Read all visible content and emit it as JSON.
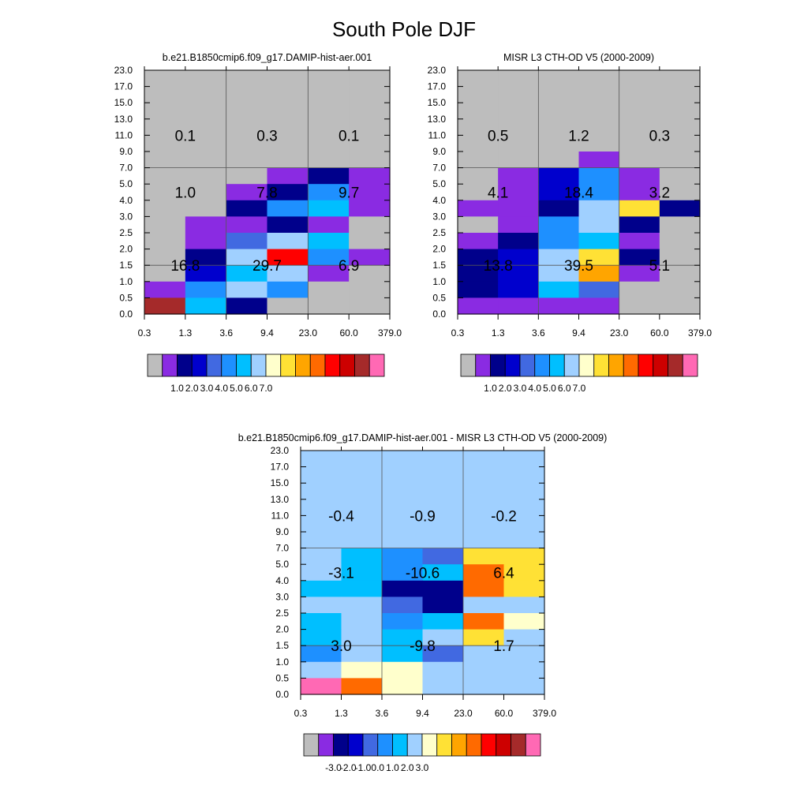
{
  "figure_title": "South Pole DJF",
  "chart_data": [
    {
      "type": "heatmap",
      "title": "b.e21.B1850cmip6.f09_g17.DAMIP-hist-aer.001",
      "x_tick_labels": [
        "0.3",
        "1.3",
        "3.6",
        "9.4",
        "23.0",
        "60.0",
        "379.0"
      ],
      "y_tick_labels": [
        "0.0",
        "0.5",
        "1.0",
        "1.5",
        "2.0",
        "2.5",
        "3.0",
        "4.0",
        "5.0",
        "7.0",
        "9.0",
        "11.0",
        "13.0",
        "15.0",
        "17.0",
        "23.0"
      ],
      "rows_top_to_bottom": [
        [
          0,
          0,
          0,
          0,
          0,
          0
        ],
        [
          0,
          0,
          0,
          0,
          0,
          0
        ],
        [
          0,
          0,
          0,
          0,
          0,
          0
        ],
        [
          0,
          0,
          0,
          0,
          0,
          0
        ],
        [
          0,
          0,
          0,
          0,
          0,
          0
        ],
        [
          0,
          0,
          0,
          0,
          0,
          0
        ],
        [
          0,
          0,
          0,
          1,
          2,
          1
        ],
        [
          0,
          0,
          1,
          2,
          5,
          1
        ],
        [
          0,
          0,
          2,
          5,
          6,
          1
        ],
        [
          0,
          1,
          1,
          2,
          1,
          0
        ],
        [
          0,
          1,
          4,
          7,
          6,
          0
        ],
        [
          0,
          2,
          7,
          12,
          5,
          1
        ],
        [
          0,
          3,
          6,
          7,
          1,
          0
        ],
        [
          1,
          5,
          7,
          5,
          0,
          0
        ],
        [
          14,
          6,
          2,
          0,
          0,
          0
        ]
      ],
      "region_labels": [
        {
          "text": "0.1",
          "xi": 0,
          "yi": 11
        },
        {
          "text": "0.3",
          "xi": 1,
          "yi": 11
        },
        {
          "text": "0.1",
          "xi": 2,
          "yi": 11
        },
        {
          "text": "1.0",
          "xi": 0,
          "yi": 7.5
        },
        {
          "text": "7.8",
          "xi": 1,
          "yi": 7.5
        },
        {
          "text": "9.7",
          "xi": 2,
          "yi": 7.5
        },
        {
          "text": "16.8",
          "xi": 0,
          "yi": 3
        },
        {
          "text": "29.7",
          "xi": 1,
          "yi": 3
        },
        {
          "text": "6.9",
          "xi": 2,
          "yi": 3
        }
      ],
      "colorbar": {
        "colors": [
          "#bdbdbd",
          "#8a2be2",
          "#00008b",
          "#0000cd",
          "#4169e1",
          "#1e90ff",
          "#00bfff",
          "#a0d0ff",
          "#ffffcc",
          "#ffe135",
          "#ffa500",
          "#ff6a00",
          "#ff0000",
          "#cd0000",
          "#a52a2a",
          "#ff69b4"
        ],
        "labels": [
          "1.0",
          "2.0",
          "3.0",
          "4.0",
          "5.0",
          "6.0",
          "7.0"
        ]
      }
    },
    {
      "type": "heatmap",
      "title": "MISR L3 CTH-OD V5 (2000-2009)",
      "x_tick_labels": [
        "0.3",
        "1.3",
        "3.6",
        "9.4",
        "23.0",
        "60.0",
        "379.0"
      ],
      "y_tick_labels": [
        "0.0",
        "0.5",
        "1.0",
        "1.5",
        "2.0",
        "2.5",
        "3.0",
        "4.0",
        "5.0",
        "7.0",
        "9.0",
        "11.0",
        "13.0",
        "15.0",
        "17.0",
        "23.0"
      ],
      "rows_top_to_bottom": [
        [
          0,
          0,
          0,
          0,
          0,
          0
        ],
        [
          0,
          0,
          0,
          0,
          0,
          0
        ],
        [
          0,
          0,
          0,
          0,
          0,
          0
        ],
        [
          0,
          0,
          0,
          0,
          0,
          0
        ],
        [
          0,
          0,
          0,
          0,
          0,
          0
        ],
        [
          0,
          0,
          0,
          1,
          0,
          0
        ],
        [
          0,
          1,
          3,
          5,
          1,
          0
        ],
        [
          0,
          1,
          3,
          5,
          1,
          0
        ],
        [
          1,
          1,
          2,
          7,
          9,
          2
        ],
        [
          0,
          1,
          5,
          7,
          2,
          0
        ],
        [
          1,
          2,
          5,
          6,
          1,
          0
        ],
        [
          2,
          3,
          7,
          9,
          2,
          0
        ],
        [
          2,
          3,
          7,
          10,
          1,
          0
        ],
        [
          2,
          3,
          6,
          4,
          0,
          0
        ],
        [
          1,
          1,
          1,
          1,
          0,
          0
        ]
      ],
      "region_labels": [
        {
          "text": "0.5",
          "xi": 0,
          "yi": 11
        },
        {
          "text": "1.2",
          "xi": 1,
          "yi": 11
        },
        {
          "text": "0.3",
          "xi": 2,
          "yi": 11
        },
        {
          "text": "4.1",
          "xi": 0,
          "yi": 7.5
        },
        {
          "text": "18.4",
          "xi": 1,
          "yi": 7.5
        },
        {
          "text": "3.2",
          "xi": 2,
          "yi": 7.5
        },
        {
          "text": "13.8",
          "xi": 0,
          "yi": 3
        },
        {
          "text": "39.5",
          "xi": 1,
          "yi": 3
        },
        {
          "text": "5.1",
          "xi": 2,
          "yi": 3
        }
      ],
      "colorbar": {
        "colors": [
          "#bdbdbd",
          "#8a2be2",
          "#00008b",
          "#0000cd",
          "#4169e1",
          "#1e90ff",
          "#00bfff",
          "#a0d0ff",
          "#ffffcc",
          "#ffe135",
          "#ffa500",
          "#ff6a00",
          "#ff0000",
          "#cd0000",
          "#a52a2a",
          "#ff69b4"
        ],
        "labels": [
          "1.0",
          "2.0",
          "3.0",
          "4.0",
          "5.0",
          "6.0",
          "7.0"
        ]
      }
    },
    {
      "type": "heatmap",
      "title": "b.e21.B1850cmip6.f09_g17.DAMIP-hist-aer.001 - MISR L3 CTH-OD V5 (2000-2009)",
      "x_tick_labels": [
        "0.3",
        "1.3",
        "3.6",
        "9.4",
        "23.0",
        "60.0",
        "379.0"
      ],
      "y_tick_labels": [
        "0.0",
        "0.5",
        "1.0",
        "1.5",
        "2.0",
        "2.5",
        "3.0",
        "4.0",
        "5.0",
        "7.0",
        "9.0",
        "11.0",
        "13.0",
        "15.0",
        "17.0",
        "23.0"
      ],
      "rows_top_to_bottom": [
        [
          7,
          7,
          7,
          7,
          7,
          7
        ],
        [
          7,
          7,
          7,
          7,
          7,
          7
        ],
        [
          7,
          7,
          7,
          7,
          7,
          7
        ],
        [
          7,
          7,
          7,
          7,
          7,
          7
        ],
        [
          7,
          7,
          7,
          7,
          7,
          7
        ],
        [
          7,
          7,
          7,
          7,
          7,
          7
        ],
        [
          7,
          6,
          5,
          4,
          9,
          9
        ],
        [
          7,
          6,
          5,
          6,
          11,
          9
        ],
        [
          6,
          6,
          2,
          2,
          11,
          9
        ],
        [
          7,
          7,
          4,
          2,
          7,
          7
        ],
        [
          6,
          7,
          5,
          6,
          11,
          8
        ],
        [
          6,
          7,
          6,
          7,
          9,
          7
        ],
        [
          5,
          7,
          6,
          4,
          7,
          7
        ],
        [
          7,
          8,
          8,
          7,
          7,
          7
        ],
        [
          15,
          11,
          8,
          7,
          7,
          7
        ]
      ],
      "region_labels": [
        {
          "text": "-0.4",
          "xi": 0,
          "yi": 11
        },
        {
          "text": "-0.9",
          "xi": 1,
          "yi": 11
        },
        {
          "text": "-0.2",
          "xi": 2,
          "yi": 11
        },
        {
          "text": "-3.1",
          "xi": 0,
          "yi": 7.5
        },
        {
          "text": "-10.6",
          "xi": 1,
          "yi": 7.5
        },
        {
          "text": "6.4",
          "xi": 2,
          "yi": 7.5
        },
        {
          "text": "3.0",
          "xi": 0,
          "yi": 3
        },
        {
          "text": "-9.8",
          "xi": 1,
          "yi": 3
        },
        {
          "text": "1.7",
          "xi": 2,
          "yi": 3
        }
      ],
      "colorbar": {
        "colors": [
          "#bdbdbd",
          "#8a2be2",
          "#00008b",
          "#0000cd",
          "#4169e1",
          "#1e90ff",
          "#00bfff",
          "#a0d0ff",
          "#ffffcc",
          "#ffe135",
          "#ffa500",
          "#ff6a00",
          "#ff0000",
          "#cd0000",
          "#a52a2a",
          "#ff69b4"
        ],
        "labels": [
          "-3.0",
          "-2.0",
          "-1.0",
          "0.0",
          "1.0",
          "2.0",
          "3.0"
        ]
      }
    }
  ]
}
